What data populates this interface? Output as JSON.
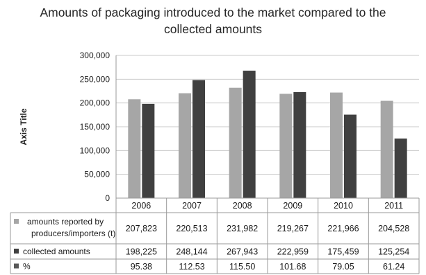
{
  "chart_data": {
    "type": "bar",
    "title": "Amounts of packaging introduced to the market compared to the collected amounts",
    "title_lines": [
      "Amounts of packaging introduced to the market compared to the",
      "collected amounts"
    ],
    "ylabel": "Axis Title",
    "xlabel": "",
    "ylim": [
      0,
      300000
    ],
    "yticks": [
      0,
      50000,
      100000,
      150000,
      200000,
      250000,
      300000
    ],
    "ytick_labels": [
      "0",
      "50,000",
      "100,000",
      "150,000",
      "200,000",
      "250,000",
      "300,000"
    ],
    "grid": true,
    "legend": "data-table",
    "categories": [
      "2006",
      "2007",
      "2008",
      "2009",
      "2010",
      "2011"
    ],
    "series": [
      {
        "name": "amounts reported by producers/importers (t)",
        "name_lines": [
          "amounts reported by",
          "producers/importers (t)"
        ],
        "color": "#a6a6a6",
        "values": [
          207823,
          220513,
          231982,
          219267,
          221966,
          204528
        ],
        "labels": [
          "207,823",
          "220,513",
          "231,982",
          "219,267",
          "221,966",
          "204,528"
        ]
      },
      {
        "name": "collected amounts",
        "name_lines": [
          "collected amounts"
        ],
        "color": "#404040",
        "values": [
          198225,
          248144,
          267943,
          222959,
          175459,
          125254
        ],
        "labels": [
          "198,225",
          "248,144",
          "267,943",
          "222,959",
          "175,459",
          "125,254"
        ]
      }
    ],
    "table_extra_rows": [
      {
        "name": "%",
        "color": "#595959",
        "values": [
          95.38,
          112.53,
          115.5,
          101.68,
          79.05,
          61.24
        ],
        "labels": [
          "95.38",
          "112.53",
          "115.50",
          "101.68",
          "79.05",
          "61.24"
        ]
      }
    ]
  }
}
